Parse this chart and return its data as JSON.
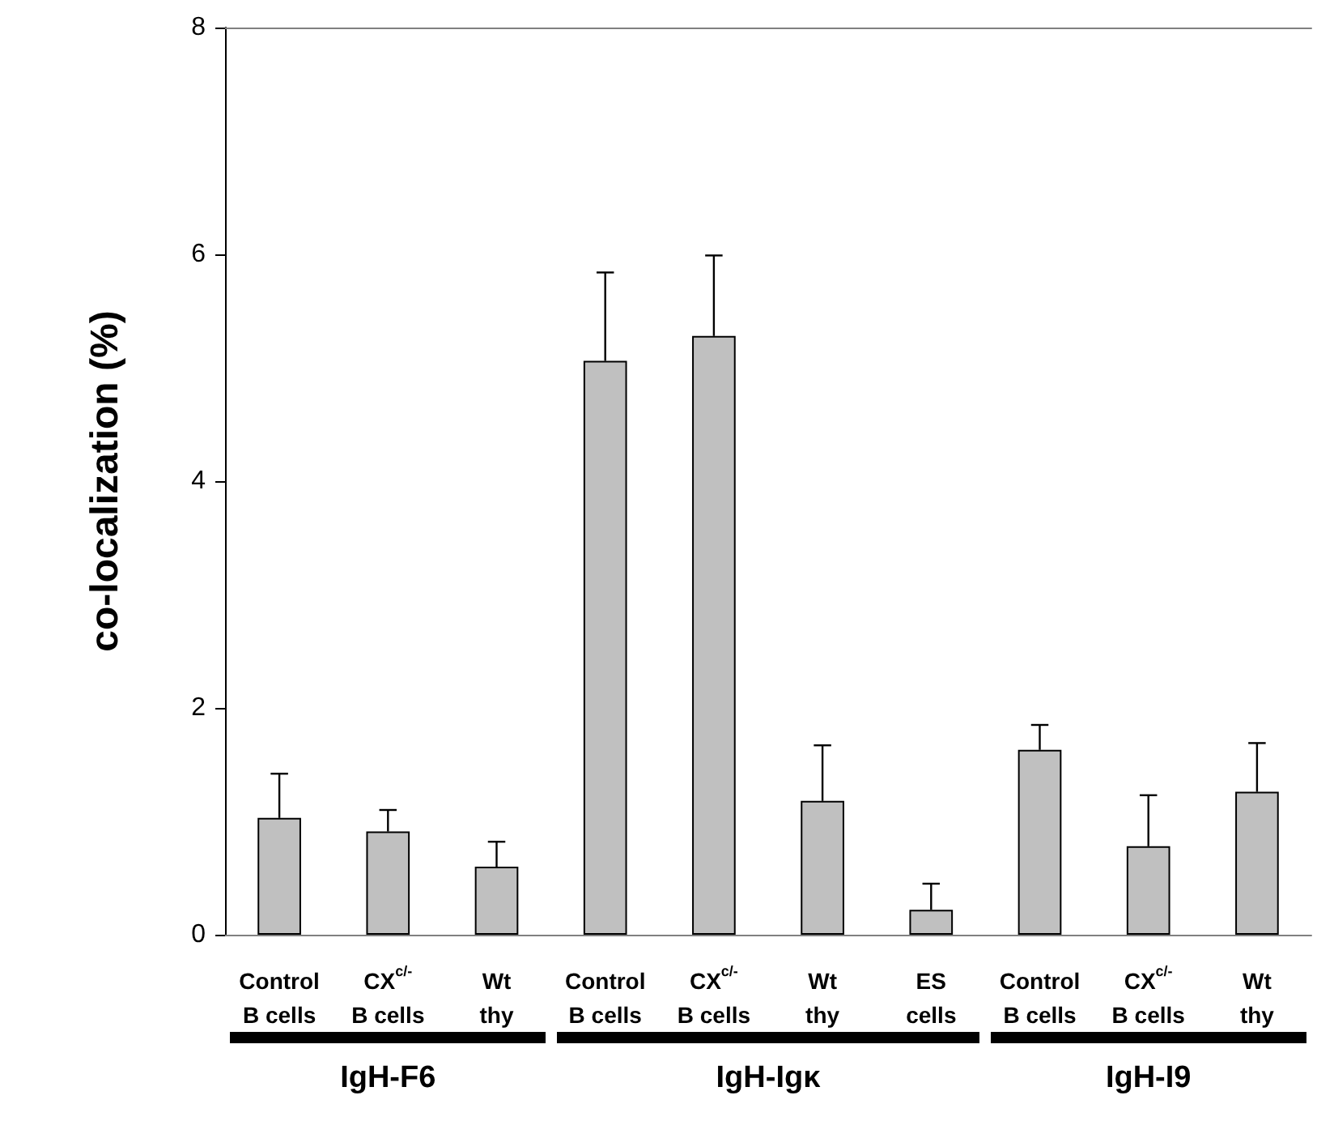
{
  "chart_data": {
    "type": "bar",
    "ylabel": "co-localization (%)",
    "categories": [
      "Control\nB cells",
      "CX$^{c/-}$\nB cells",
      "Wt\nthy",
      "Control\nB cells",
      "CX$^{c/-}$\nB cells",
      "Wt\nthy",
      "ES\ncells",
      "Control\nB cells",
      "CX$^{c/-}$\nB cells",
      "Wt\nthy"
    ],
    "values": [
      1.03,
      0.91,
      0.6,
      5.06,
      5.28,
      1.18,
      0.22,
      1.63,
      0.78,
      1.26
    ],
    "errors": [
      [
        1.03,
        1.42
      ],
      [
        0.91,
        1.1
      ],
      [
        0.6,
        0.82
      ],
      [
        5.06,
        5.84
      ],
      [
        5.28,
        5.99
      ],
      [
        1.18,
        1.67
      ],
      [
        0.22,
        0.45
      ],
      [
        1.63,
        1.85
      ],
      [
        0.78,
        1.23
      ],
      [
        1.26,
        1.69
      ]
    ],
    "color": "#c0c0c0",
    "ylim": [
      0,
      8
    ],
    "yticks": [
      0,
      2,
      4,
      6,
      8
    ],
    "annotations": [
      "IgH-F6",
      "IgH-Igκ",
      "IgH-I9"
    ]
  }
}
